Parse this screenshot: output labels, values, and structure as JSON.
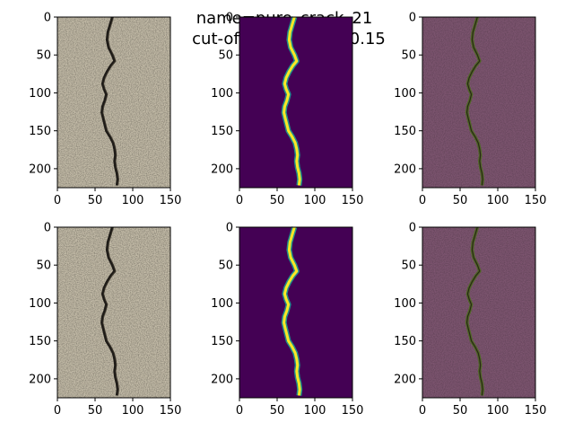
{
  "figure": {
    "title_line1": "name=pure_crack_21",
    "title_line2": "cut-off threshold = 0.15"
  },
  "chart_data": {
    "type": "image-grid",
    "rows": 2,
    "cols": 3,
    "panel_types": [
      "original-photo",
      "viridis-heatmap",
      "overlay"
    ],
    "xlim": [
      0,
      150
    ],
    "ylim": [
      225,
      0
    ],
    "x_ticks": [
      0,
      50,
      100,
      150
    ],
    "y_ticks": [
      0,
      50,
      100,
      150,
      200
    ],
    "x_tick_labels": [
      "0",
      "50",
      "100",
      "150"
    ],
    "y_tick_labels": [
      "0",
      "50",
      "100",
      "150",
      "200"
    ],
    "crack_path": [
      {
        "y": 0,
        "x": 73
      },
      {
        "y": 10,
        "x": 70
      },
      {
        "y": 20,
        "x": 67
      },
      {
        "y": 30,
        "x": 66
      },
      {
        "y": 40,
        "x": 68
      },
      {
        "y": 50,
        "x": 73
      },
      {
        "y": 58,
        "x": 76
      },
      {
        "y": 64,
        "x": 71
      },
      {
        "y": 72,
        "x": 66
      },
      {
        "y": 80,
        "x": 62
      },
      {
        "y": 88,
        "x": 60
      },
      {
        "y": 95,
        "x": 62
      },
      {
        "y": 102,
        "x": 65
      },
      {
        "y": 110,
        "x": 63
      },
      {
        "y": 118,
        "x": 60
      },
      {
        "y": 126,
        "x": 59
      },
      {
        "y": 134,
        "x": 61
      },
      {
        "y": 142,
        "x": 63
      },
      {
        "y": 150,
        "x": 65
      },
      {
        "y": 158,
        "x": 70
      },
      {
        "y": 166,
        "x": 74
      },
      {
        "y": 174,
        "x": 76
      },
      {
        "y": 182,
        "x": 77
      },
      {
        "y": 190,
        "x": 76
      },
      {
        "y": 198,
        "x": 77
      },
      {
        "y": 206,
        "x": 79
      },
      {
        "y": 214,
        "x": 80
      },
      {
        "y": 222,
        "x": 79
      }
    ],
    "colors": {
      "concrete": "#c5bda9",
      "crack": "#1e1b17",
      "heat_background": "#440154",
      "heat_mid": "#21918c",
      "heat_high": "#fde725",
      "overlay_tint": "#7d5570",
      "overlay_crack": "#4e6a22"
    }
  }
}
